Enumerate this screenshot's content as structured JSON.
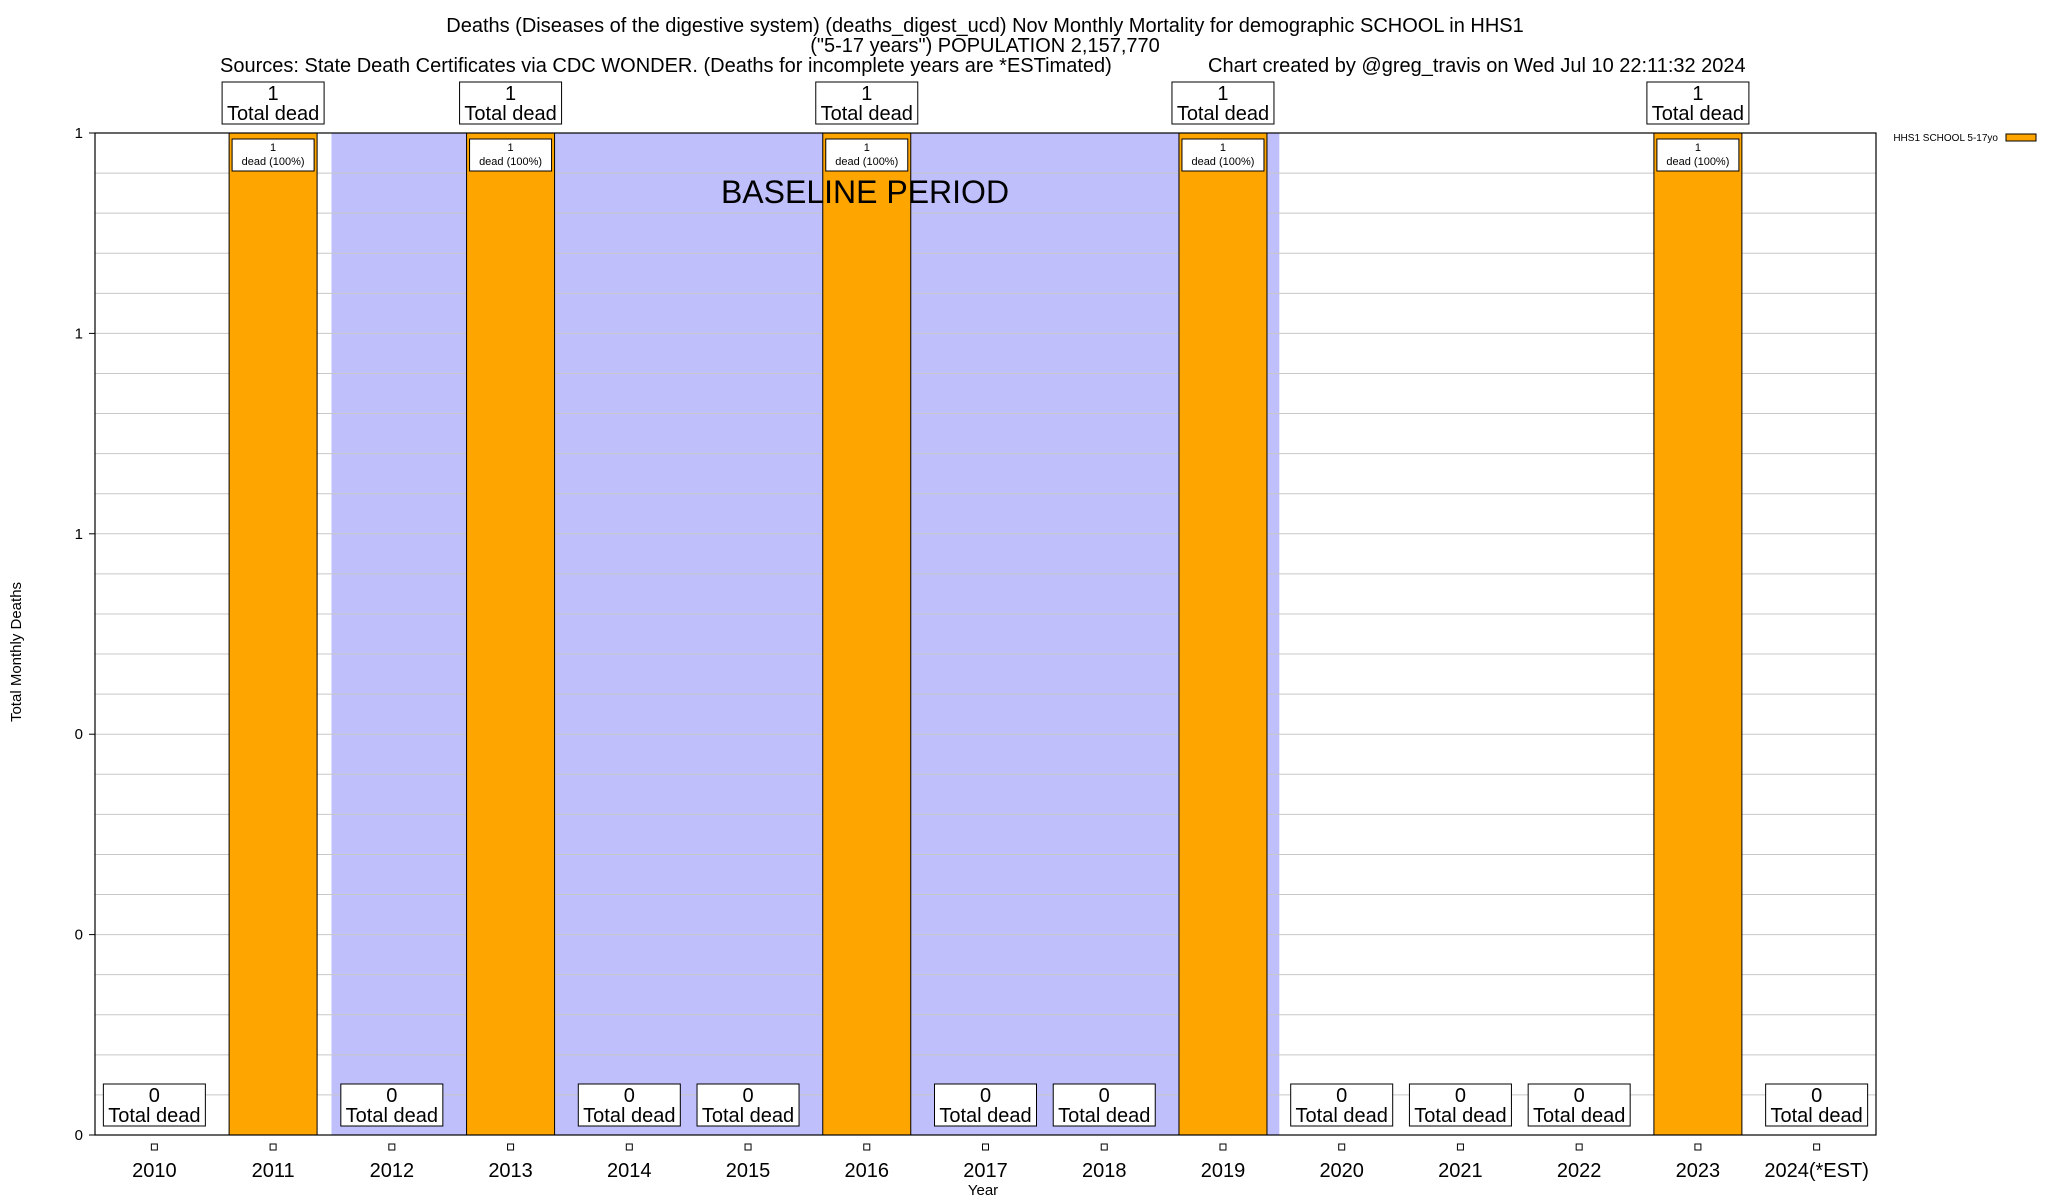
{
  "chart_data": {
    "type": "bar",
    "title_lines": [
      "Deaths (Diseases of the digestive system) (deaths_digest_ucd) Nov Monthly Mortality for demographic SCHOOL in HHS1",
      "(\"5-17 years\") POPULATION 2,157,770"
    ],
    "sources": "Sources: State Death Certificates via CDC WONDER. (Deaths for incomplete years are *ESTimated)",
    "credit": "Chart created by @greg_travis on Wed Jul 10 22:11:32 2024",
    "xlabel": "Year",
    "ylabel": "Total Monthly Deaths",
    "ylim": [
      0,
      1
    ],
    "y_tick_labels": [
      "0",
      "0",
      "0",
      "1",
      "1",
      "1"
    ],
    "grid": true,
    "legend_position": "top-right",
    "categories": [
      "2010",
      "2011",
      "2012",
      "2013",
      "2014",
      "2015",
      "2016",
      "2017",
      "2018",
      "2019",
      "2020",
      "2021",
      "2022",
      "2023",
      "2024(*EST)"
    ],
    "series": [
      {
        "name": "HHS1 SCHOOL 5-17yo",
        "color": "#ffa500",
        "values": [
          0,
          1,
          0,
          1,
          0,
          0,
          1,
          0,
          0,
          1,
          0,
          0,
          0,
          1,
          0
        ]
      }
    ],
    "total_label_values": [
      "0",
      "1",
      "0",
      "1",
      "0",
      "0",
      "1",
      "0",
      "0",
      "1",
      "0",
      "0",
      "0",
      "1",
      "0"
    ],
    "total_label_text": "Total dead",
    "inner_labels": [
      "",
      "1\ndead (100%)",
      "",
      "1\ndead (100%)",
      "",
      "",
      "1\ndead (100%)",
      "",
      "",
      "1\ndead (100%)",
      "",
      "",
      "",
      "1\ndead (100%)",
      ""
    ],
    "baseline": {
      "label": "BASELINE PERIOD",
      "from": "2012",
      "to": "2019",
      "color": "#bfbffb"
    }
  }
}
